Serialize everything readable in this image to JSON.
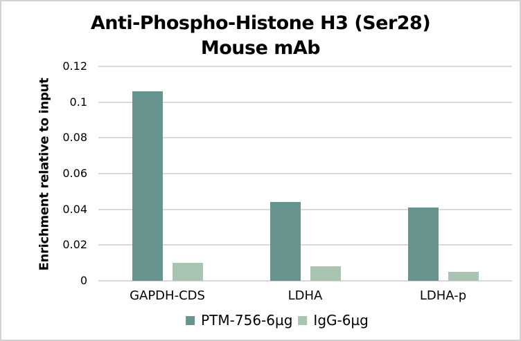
{
  "title": {
    "line1": "Anti-Phospho-Histone H3 (Ser28)",
    "line2": "Mouse mAb"
  },
  "chart_data": {
    "type": "bar",
    "title": "Anti-Phospho-Histone H3 (Ser28) Mouse mAb",
    "categories": [
      "GAPDH-CDS",
      "LDHA",
      "LDHA-p"
    ],
    "series": [
      {
        "name": "PTM-756-6µg",
        "color": "#67948E",
        "values": [
          0.106,
          0.044,
          0.041
        ]
      },
      {
        "name": "IgG-6µg",
        "color": "#A9C4B1",
        "values": [
          0.01,
          0.008,
          0.005
        ]
      }
    ],
    "xlabel": "",
    "ylabel": "Enrichment relative to input",
    "ylim": [
      0,
      0.12
    ],
    "yticks": [
      {
        "value": 0,
        "label": "0"
      },
      {
        "value": 0.02,
        "label": "0.02"
      },
      {
        "value": 0.04,
        "label": "0.04"
      },
      {
        "value": 0.06,
        "label": "0.06"
      },
      {
        "value": 0.08,
        "label": "0.08"
      },
      {
        "value": 0.1,
        "label": "0.1"
      },
      {
        "value": 0.12,
        "label": "0.12"
      }
    ],
    "grid": true,
    "legend_position": "bottom"
  },
  "colors": {
    "grid": "#D9D9D9",
    "background": "#FFFFFF",
    "border": "#D2D2D2",
    "text": "#000000"
  }
}
